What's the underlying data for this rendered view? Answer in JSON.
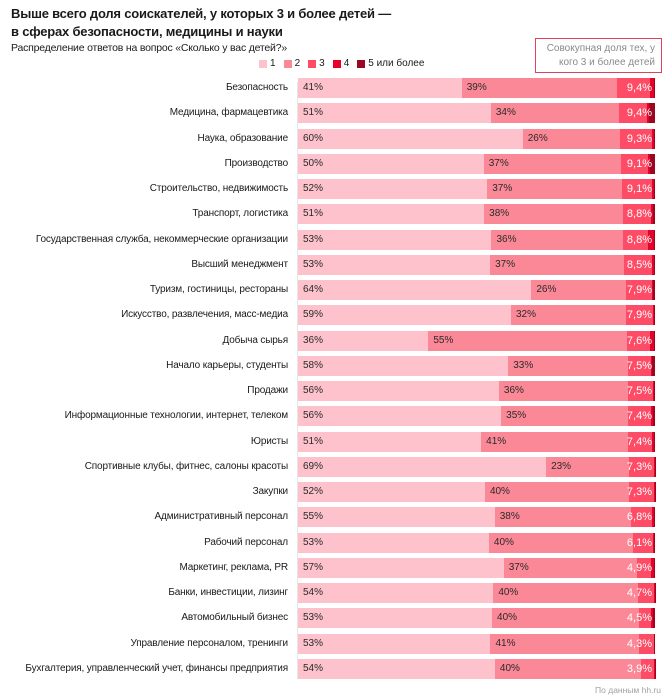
{
  "colors": {
    "c1": "#fdc2cb",
    "c2": "#fb8896",
    "c3": "#fe4c66",
    "c4": "#e4022a",
    "c5": "#9b0620",
    "note_border": "#e0415e"
  },
  "note": {
    "line1": "Совокупная доля тех, у",
    "line2": "кого 3 и более детей"
  },
  "footer": "По данным hh.ru",
  "chart_data": {
    "type": "bar",
    "orientation": "horizontal",
    "stacked": true,
    "title": "Выше всего доля соискателей, у которых 3 и более детей — в сферах безопасности, медицины и науки",
    "title_line1": "Выше всего доля соискателей, у которых 3 и более детей —",
    "title_line2": "в сферах безопасности, медицины и науки",
    "subtitle": "Распределение ответов на вопрос «Сколько у вас детей?»",
    "legend_position": "top",
    "legend": [
      "1",
      "2",
      "3",
      "4",
      "5 или более"
    ],
    "xlabel": "",
    "ylabel": "",
    "xlim": [
      0,
      100
    ],
    "grid": false,
    "categories": [
      "Безопасность",
      "Медицина, фармацевтика",
      "Наука, образование",
      "Производство",
      "Строительство, недвижимость",
      "Транспорт, логистика",
      "Государственная служба, некоммерческие организации",
      "Высший менеджмент",
      "Туризм, гостиницы, рестораны",
      "Искусство, развлечения, масс-медиа",
      "Добыча сырья",
      "Начало карьеры, студенты",
      "Продажи",
      "Информационные технологии, интернет, телеком",
      "Юристы",
      "Спортивные клубы, фитнес, салоны красоты",
      "Закупки",
      "Административный персонал",
      "Рабочий персонал",
      "Маркетинг, реклама, PR",
      "Банки, инвестиции, лизинг",
      "Автомобильный бизнес",
      "Управление персоналом, тренинги",
      "Бухгалтерия, управленческий учет, финансы предприятия"
    ],
    "series": [
      {
        "name": "1",
        "values": [
          41,
          51,
          60,
          50,
          52,
          51,
          53,
          53,
          64,
          59,
          36,
          58,
          56,
          56,
          51,
          69,
          52,
          55,
          53,
          57,
          54,
          53,
          53,
          54
        ]
      },
      {
        "name": "2",
        "values": [
          39,
          34,
          26,
          37,
          37,
          38,
          36,
          37,
          26,
          32,
          55,
          33,
          36,
          35,
          41,
          23,
          40,
          38,
          40,
          37,
          40,
          40,
          41,
          40
        ]
      },
      {
        "name": "3",
        "values": [
          8.2,
          7.4,
          8.4,
          7.3,
          8.2,
          7.6,
          6.8,
          7.6,
          7.1,
          7.3,
          6.1,
          6.4,
          6.9,
          6.3,
          6.6,
          7.0,
          7.0,
          6.0,
          5.6,
          3.7,
          4.5,
          3.5,
          3.9,
          3.7
        ]
      },
      {
        "name": "4",
        "values": [
          1.0,
          0.5,
          0.7,
          0.4,
          0.5,
          0.7,
          1.7,
          0.6,
          0.3,
          0.3,
          1.3,
          0.4,
          0.4,
          0.5,
          0.5,
          0.2,
          0.2,
          0.6,
          0.3,
          0.9,
          0.2,
          0.5,
          0.2,
          0.2
        ]
      },
      {
        "name": "5 или более",
        "values": [
          0.2,
          1.5,
          0.2,
          1.4,
          0.4,
          0.5,
          0.3,
          0.3,
          0.5,
          0.3,
          0.2,
          0.7,
          0.2,
          0.6,
          0.3,
          0.1,
          0.1,
          0.2,
          0.2,
          0.3,
          0.0,
          0.5,
          0.2,
          0.0
        ]
      }
    ],
    "cumulative_3_plus_labels": [
      "9,4%",
      "9,4%",
      "9,3%",
      "9,1%",
      "9,1%",
      "8,8%",
      "8,8%",
      "8,5%",
      "7,9%",
      "7,9%",
      "7,6%",
      "7,5%",
      "7,5%",
      "7,4%",
      "7,4%",
      "7,3%",
      "7,3%",
      "6,8%",
      "6,1%",
      "4,9%",
      "4,7%",
      "4,5%",
      "4,3%",
      "3,9%"
    ],
    "segment1_labels": [
      "41%",
      "51%",
      "60%",
      "50%",
      "52%",
      "51%",
      "53%",
      "53%",
      "64%",
      "59%",
      "36%",
      "58%",
      "56%",
      "56%",
      "51%",
      "69%",
      "52%",
      "55%",
      "53%",
      "57%",
      "54%",
      "53%",
      "53%",
      "54%"
    ],
    "segment2_labels": [
      "39%",
      "34%",
      "26%",
      "37%",
      "37%",
      "38%",
      "36%",
      "37%",
      "26%",
      "32%",
      "55%",
      "33%",
      "36%",
      "35%",
      "41%",
      "23%",
      "40%",
      "38%",
      "40%",
      "37%",
      "40%",
      "40%",
      "41%",
      "40%"
    ]
  }
}
